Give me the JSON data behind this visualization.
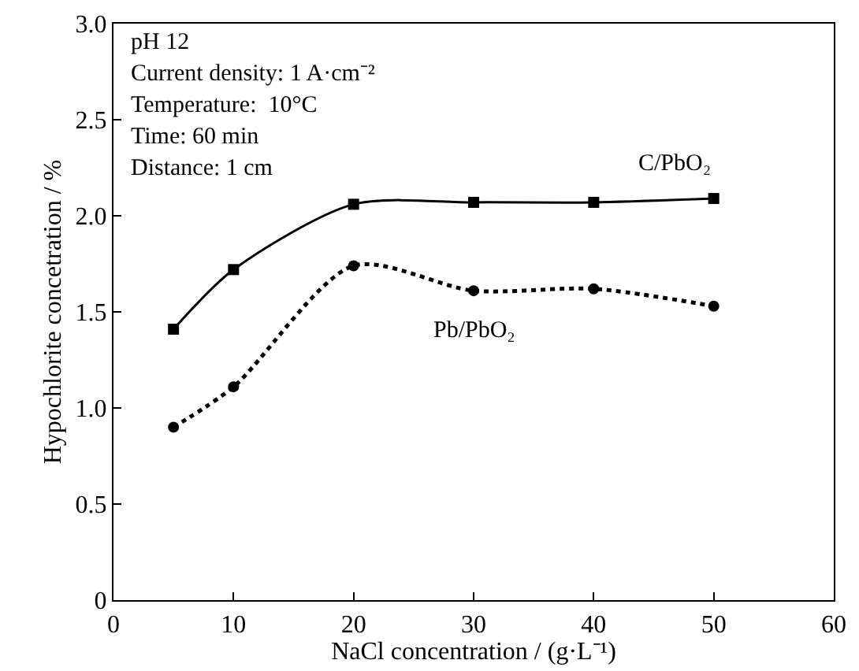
{
  "chart_data": {
    "type": "line",
    "xlabel": "NaCl concentration / (g·L⁻¹)",
    "ylabel": "Hypochlorite concetration / %",
    "annotations": [
      "pH 12",
      "Current density: 1 A·cm⁻²",
      "Temperature:  10°C",
      "Time: 60 min",
      "Distance: 1 cm"
    ],
    "x": [
      5,
      10,
      20,
      30,
      40,
      50
    ],
    "series": [
      {
        "name": "C/PbO₂",
        "color": "#000000",
        "marker": "square",
        "line_style": "solid",
        "values": [
          1.41,
          1.72,
          2.06,
          2.07,
          2.07,
          2.09
        ]
      },
      {
        "name": "Pb/PbO₂",
        "color": "#000000",
        "marker": "circle",
        "line_style": "dotted",
        "values": [
          0.9,
          1.11,
          1.74,
          1.61,
          1.62,
          1.53
        ]
      }
    ],
    "xlim": [
      0,
      60
    ],
    "xticks": [
      0,
      10,
      20,
      30,
      40,
      50,
      60
    ],
    "ylim": [
      0,
      3.0
    ],
    "yticks": [
      0,
      {
        "value": 0.5,
        "label": "0.5"
      },
      {
        "value": 1.0,
        "label": "1.0"
      },
      {
        "value": 1.5,
        "label": "1.5"
      },
      {
        "value": 2.0,
        "label": "2.0"
      },
      {
        "value": 2.5,
        "label": "2.5"
      },
      {
        "value": 3.0,
        "label": "3.0"
      }
    ],
    "legend": false
  }
}
